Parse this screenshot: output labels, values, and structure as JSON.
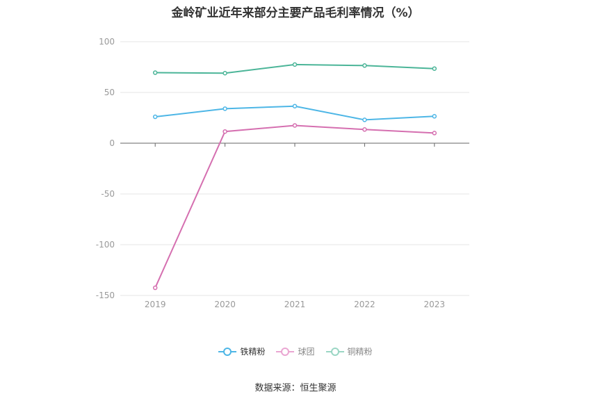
{
  "chart_data": {
    "type": "line",
    "title": "金岭矿业近年来部分主要产品毛利率情况（%）",
    "x": [
      "2019",
      "2020",
      "2021",
      "2022",
      "2023"
    ],
    "yticks": [
      100,
      50,
      0,
      -50,
      -100,
      -150
    ],
    "ylim": [
      -150,
      100
    ],
    "grid": true,
    "legend_position": "bottom",
    "series": [
      {
        "name": "铁精粉",
        "color": "#4db6e6",
        "values": [
          26.0,
          34.0,
          36.5,
          23.0,
          26.5
        ]
      },
      {
        "name": "球团",
        "color": "#d56fb0",
        "values": [
          -142.5,
          11.5,
          17.5,
          13.5,
          10.0
        ]
      },
      {
        "name": "铜精粉",
        "color": "#4bb598",
        "values": [
          69.5,
          69.0,
          77.5,
          76.5,
          73.5
        ]
      }
    ],
    "source": "数据来源：恒生聚源"
  }
}
